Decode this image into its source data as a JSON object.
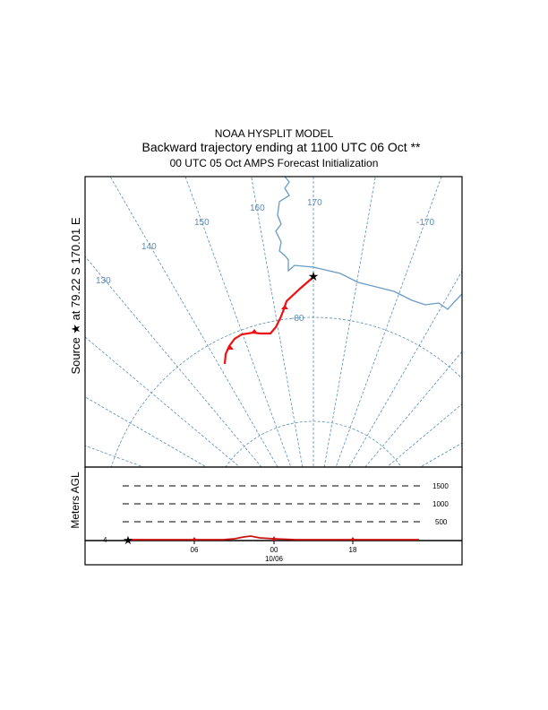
{
  "chart_data": {
    "type": "line",
    "title": "NOAA HYSPLIT MODEL",
    "subtitle": "Backward trajectory ending at 1100 UTC 06 Oct **",
    "subtitle2": "00 UTC 05 Oct    AMPS  Forecast Initialization",
    "map": {
      "source_label": "Source ★ at  79.22 S  170.01 E",
      "source_lat": -79.22,
      "source_lon": 170.01,
      "meridian_labels": [
        "130",
        "140",
        "150",
        "160",
        "170",
        "-170"
      ],
      "latitude_label": "-80",
      "trajectory_color": "#ee1111",
      "grid_color": "#5b8db8",
      "coast_color": "#6a9ac4"
    },
    "height_panel": {
      "ylabel": "Meters AGL",
      "levels": [
        "1500",
        "1000",
        "500"
      ],
      "start_height_label": "4",
      "time_ticks": [
        "06",
        "00",
        "18"
      ],
      "date_label": "10/06"
    }
  }
}
